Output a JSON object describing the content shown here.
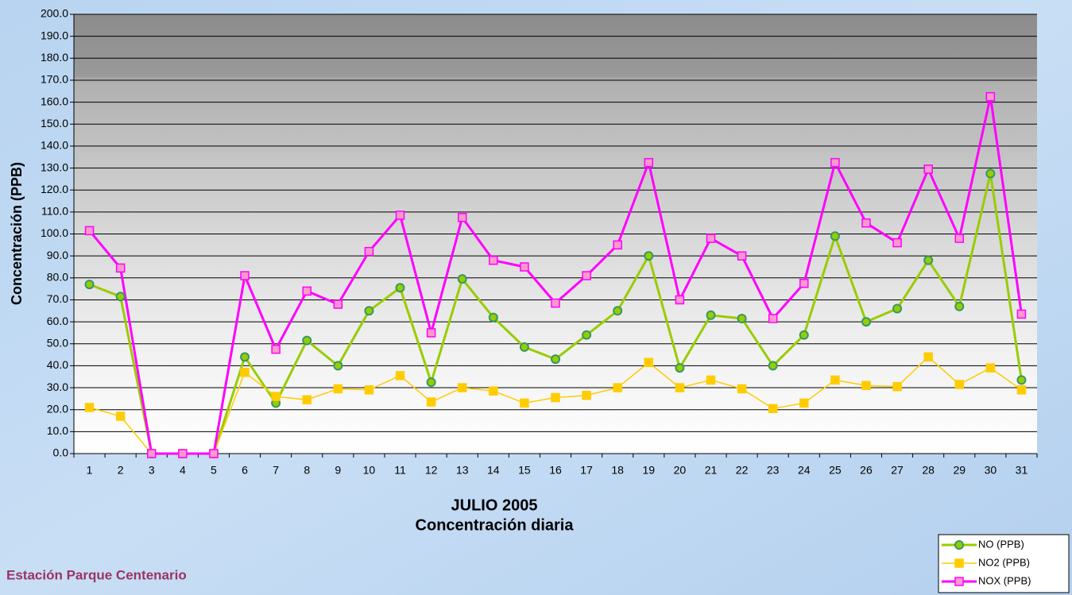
{
  "chart_data": {
    "type": "line",
    "title": "JULIO 2005",
    "subtitle": "Concentración diaria",
    "y_label": "Concentración  (PPB)",
    "station": "Estación Parque Centenario",
    "categories": [
      "1",
      "2",
      "3",
      "4",
      "5",
      "6",
      "7",
      "8",
      "9",
      "10",
      "11",
      "12",
      "13",
      "14",
      "15",
      "16",
      "17",
      "18",
      "19",
      "20",
      "21",
      "22",
      "23",
      "24",
      "25",
      "26",
      "27",
      "28",
      "29",
      "30",
      "31"
    ],
    "series": [
      {
        "name": "NO (PPB)",
        "color": "#99cc00",
        "marker": "circle",
        "marker_color": "#339966",
        "width": 3,
        "values": [
          77,
          71.5,
          0,
          0,
          0,
          44,
          23,
          51.5,
          40,
          65,
          75.5,
          32.5,
          79.5,
          62,
          48.5,
          43,
          54,
          65,
          90,
          39,
          63,
          61.5,
          40,
          54,
          99,
          60,
          66,
          88,
          67,
          127.5,
          33.5
        ]
      },
      {
        "name": "NO2 (PPB)",
        "color": "#ffcc00",
        "marker": "square",
        "marker_color": "#ffcc00",
        "width": 1.5,
        "values": [
          21,
          17,
          0,
          0,
          0,
          37,
          26,
          24.5,
          29.5,
          29,
          35.5,
          23.5,
          30,
          28.5,
          23,
          25.5,
          26.5,
          30,
          41.5,
          30,
          33.5,
          29.5,
          20.5,
          23,
          33.5,
          31,
          30.5,
          44,
          31.5,
          39,
          29
        ]
      },
      {
        "name": "NOX (PPB)",
        "color": "#ff00ff",
        "marker": "square",
        "marker_color": "#ff99cc",
        "width": 3,
        "values": [
          101.5,
          84.5,
          0,
          0,
          0,
          81,
          47.5,
          74,
          68,
          92,
          108.5,
          55,
          107.5,
          88,
          85,
          68.5,
          81,
          95,
          132.5,
          70,
          98,
          90,
          61.5,
          77.5,
          132.5,
          105,
          96,
          129.5,
          98,
          162.5,
          63.5
        ]
      }
    ],
    "ylim": [
      0,
      200
    ],
    "yticks": [
      {
        "value": 0,
        "label": "0.0"
      },
      {
        "value": 10,
        "label": "10.0"
      },
      {
        "value": 20,
        "label": "20.0"
      },
      {
        "value": 30,
        "label": "30.0"
      },
      {
        "value": 40,
        "label": "40.0"
      },
      {
        "value": 50,
        "label": "50.0"
      },
      {
        "value": 60,
        "label": "60.0"
      },
      {
        "value": 70,
        "label": "70.0"
      },
      {
        "value": 80,
        "label": "80.0"
      },
      {
        "value": 90,
        "label": "90.0"
      },
      {
        "value": 100,
        "label": "100.0"
      },
      {
        "value": 110,
        "label": "110.0"
      },
      {
        "value": 120,
        "label": "120.0"
      },
      {
        "value": 130,
        "label": "130.0"
      },
      {
        "value": 140,
        "label": "140.0"
      },
      {
        "value": 150,
        "label": "150.0"
      },
      {
        "value": 160,
        "label": "160.0"
      },
      {
        "value": 170,
        "label": "170.0"
      },
      {
        "value": 180,
        "label": "180.0"
      },
      {
        "value": 190,
        "label": "190.0"
      },
      {
        "value": 200,
        "label": "200.0"
      }
    ],
    "grid": true,
    "legend": "bottom-right"
  }
}
